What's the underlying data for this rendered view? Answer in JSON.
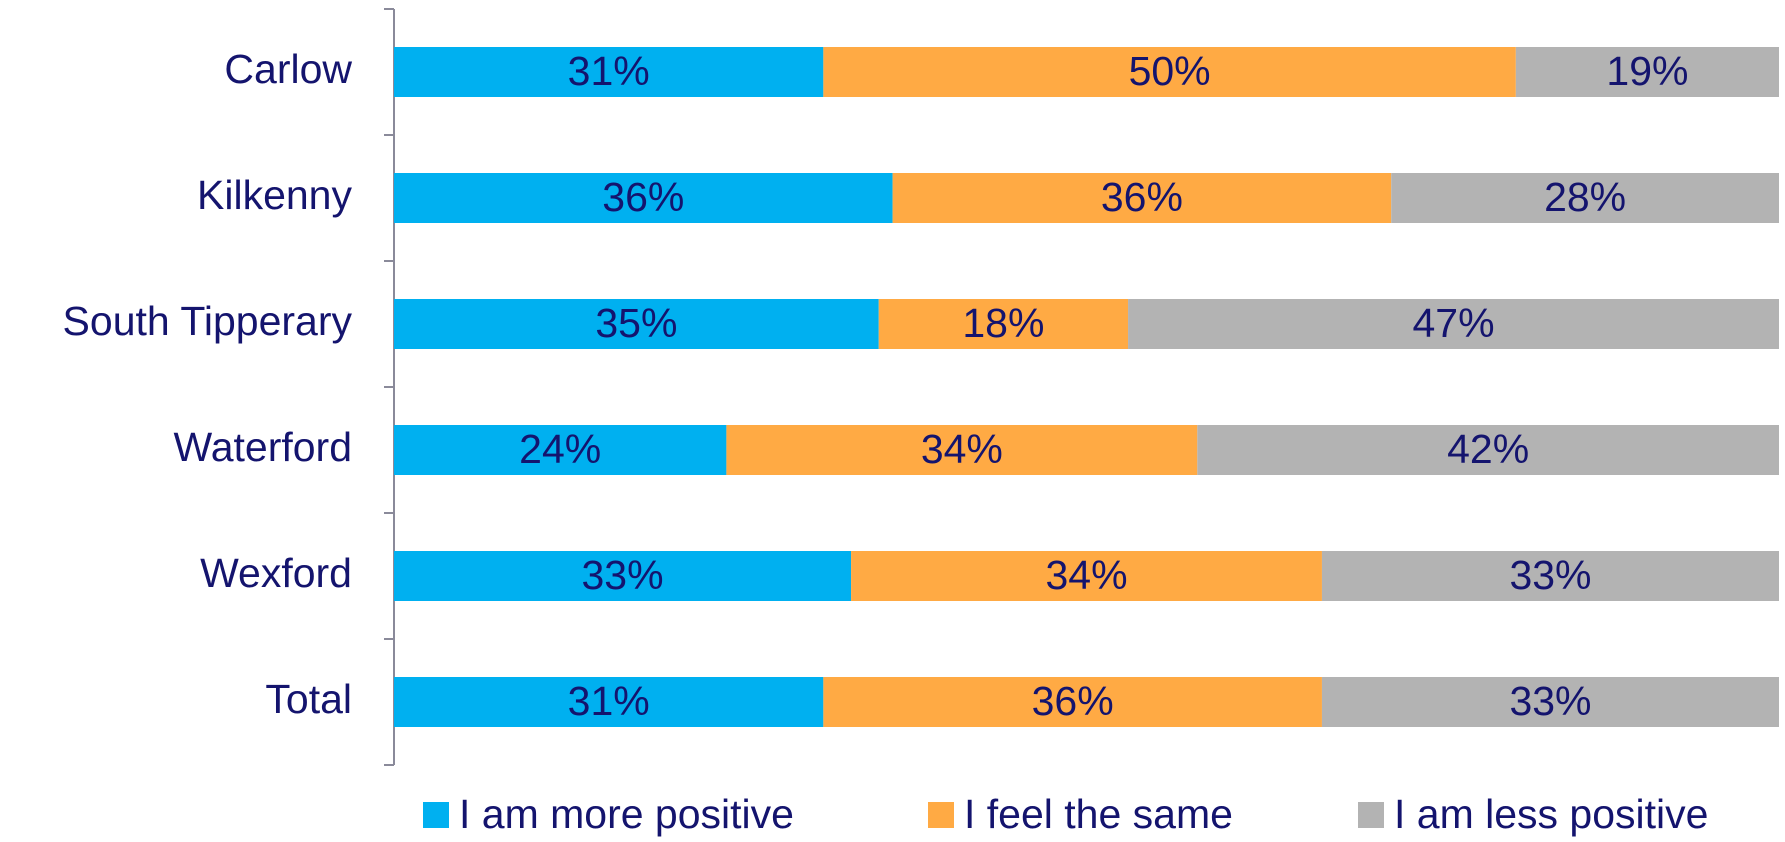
{
  "chart_data": {
    "type": "stacked_bar_horizontal",
    "categories": [
      "Carlow",
      "Kilkenny",
      "South Tipperary",
      "Waterford",
      "Wexford",
      "Total"
    ],
    "xlim": [
      0,
      100
    ],
    "series": [
      {
        "name": "I am more positive",
        "color": "#00B0F0",
        "values": [
          31,
          36,
          35,
          24,
          33,
          31
        ],
        "value_labels": [
          "31%",
          "36%",
          "35%",
          "24%",
          "33%",
          "31%"
        ]
      },
      {
        "name": "I feel the same",
        "color": "#FFAA44",
        "values": [
          50,
          36,
          18,
          34,
          34,
          36
        ],
        "value_labels": [
          "50%",
          "36%",
          "18%",
          "34%",
          "34%",
          "36%"
        ]
      },
      {
        "name": "I am less positive",
        "color": "#B3B3B3",
        "values": [
          19,
          28,
          47,
          42,
          33,
          33
        ],
        "value_labels": [
          "19%",
          "28%",
          "47%",
          "42%",
          "33%",
          "33%"
        ]
      }
    ],
    "legend": "bottom"
  }
}
